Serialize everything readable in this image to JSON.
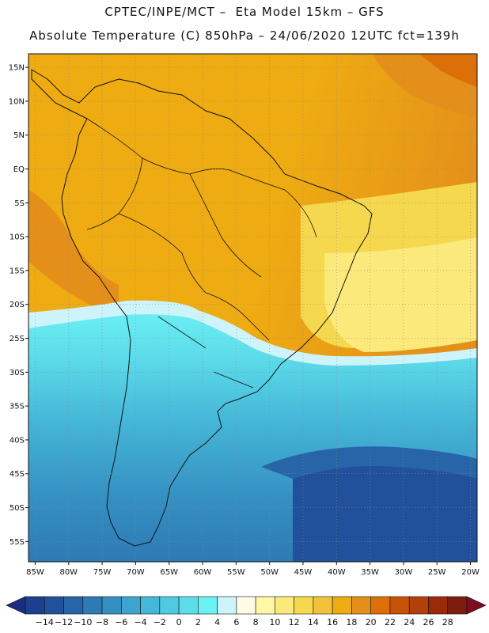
{
  "header": {
    "line1": "CPTEC/INPE/MCT –  Eta Model 15km – GFS",
    "line2": "Absolute Temperature (C) 850hPa – 24/06/2020 12UTC fct=139h"
  },
  "map": {
    "lat_labels": [
      "15N",
      "10N",
      "5N",
      "EQ",
      "5S",
      "10S",
      "15S",
      "20S",
      "25S",
      "30S",
      "35S",
      "40S",
      "45S",
      "50S",
      "55S"
    ],
    "lon_labels": [
      "85W",
      "80W",
      "75W",
      "70W",
      "65W",
      "60W",
      "55W",
      "50W",
      "45W",
      "40W",
      "35W",
      "30W",
      "25W",
      "20W"
    ],
    "lat_range": [
      -58,
      17
    ],
    "lon_range": [
      -86,
      -19
    ],
    "grid_lines": "dotted"
  },
  "colorbar": {
    "labels": [
      "-14",
      "-12",
      "-10",
      "-8",
      "-6",
      "-4",
      "-2",
      "0",
      "2",
      "4",
      "6",
      "8",
      "10",
      "12",
      "14",
      "16",
      "18",
      "20",
      "22",
      "24",
      "26",
      "28"
    ],
    "colors": [
      "#1c3f8f",
      "#22519c",
      "#2865a8",
      "#2e7ab5",
      "#3590c2",
      "#3ca4ce",
      "#45b7d8",
      "#50cae2",
      "#5ddcea",
      "#6cf2f5",
      "#cdf4fb",
      "#fffbe6",
      "#fff6a6",
      "#fbe97c",
      "#f6d84f",
      "#f1c23a",
      "#eeab12",
      "#e48f1a",
      "#dd6f08",
      "#c85204",
      "#b3400a",
      "#9a2a0a",
      "#7d1d10"
    ],
    "over_color": "#7d0d22",
    "under_color": "#1a2d80"
  }
}
